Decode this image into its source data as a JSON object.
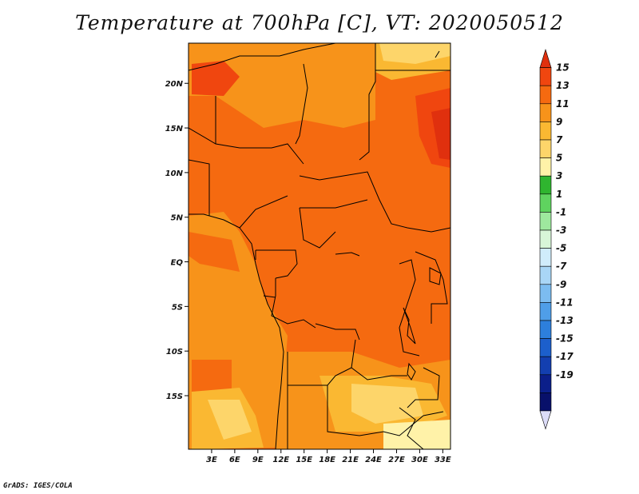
{
  "title": "Temperature at 700hPa [C], VT: 2020050512",
  "credit": "GrADS: IGES/COLA",
  "map": {
    "lat_range": [
      -21,
      24.5
    ],
    "lon_range": [
      0,
      34
    ],
    "y_ticks": [
      {
        "label": "20N",
        "lat": 20
      },
      {
        "label": "15N",
        "lat": 15
      },
      {
        "label": "10N",
        "lat": 10
      },
      {
        "label": "5N",
        "lat": 5
      },
      {
        "label": "EQ",
        "lat": 0
      },
      {
        "label": "5S",
        "lat": -5
      },
      {
        "label": "10S",
        "lat": -10
      },
      {
        "label": "15S",
        "lat": -15
      }
    ],
    "x_ticks": [
      {
        "label": "3E",
        "lon": 3
      },
      {
        "label": "6E",
        "lon": 6
      },
      {
        "label": "9E",
        "lon": 9
      },
      {
        "label": "12E",
        "lon": 12
      },
      {
        "label": "15E",
        "lon": 15
      },
      {
        "label": "18E",
        "lon": 18
      },
      {
        "label": "21E",
        "lon": 21
      },
      {
        "label": "24E",
        "lon": 24
      },
      {
        "label": "27E",
        "lon": 27
      },
      {
        "label": "30E",
        "lon": 30
      },
      {
        "label": "33E",
        "lon": 33
      }
    ]
  },
  "colorbar": {
    "labels": [
      "15",
      "13",
      "11",
      "9",
      "7",
      "5",
      "3",
      "1",
      "-1",
      "-3",
      "-5",
      "-7",
      "-9",
      "-11",
      "-13",
      "-15",
      "-17",
      "-19"
    ],
    "colors": [
      "#e0300e",
      "#f0460f",
      "#f56a10",
      "#f7931a",
      "#fab832",
      "#fdd56a",
      "#fff2a8",
      "#2fb52f",
      "#5fd35f",
      "#9ee89e",
      "#d8f6d8",
      "#d0ecfb",
      "#a9d6f6",
      "#7cbcf0",
      "#4f9ee8",
      "#2d7fdc",
      "#1c5fcc",
      "#133fb0",
      "#0b1f8a",
      "#08106a",
      "#dcdcf8"
    ]
  }
}
